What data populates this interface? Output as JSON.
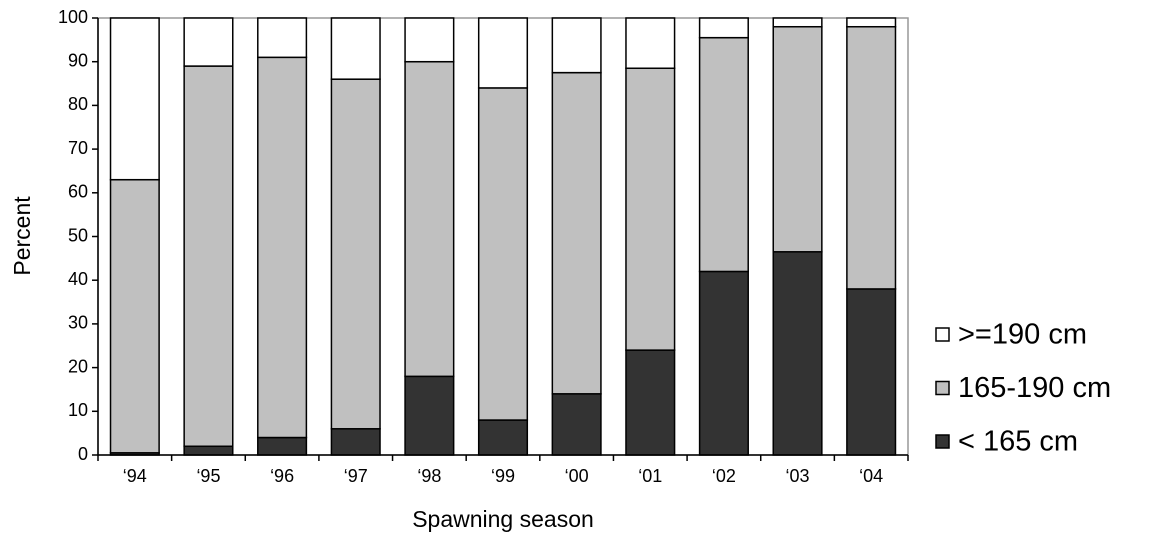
{
  "chart_data": {
    "type": "stacked_bar",
    "x_label": "Spawning season",
    "y_label": "Percent",
    "categories": [
      "‘94",
      "‘95",
      "‘96",
      "‘97",
      "‘98",
      "‘99",
      "‘00",
      "‘01",
      "‘02",
      "‘03",
      "‘04"
    ],
    "series": [
      {
        "name": "< 165 cm",
        "color": "#333333",
        "values": [
          0.5,
          2,
          4,
          6,
          18,
          8,
          14,
          24,
          42,
          46.5,
          38
        ]
      },
      {
        "name": "165-190 cm",
        "color": "#c0c0c0",
        "values": [
          62.5,
          87,
          87,
          80,
          72,
          76,
          73.5,
          64.5,
          53.5,
          51.5,
          60
        ]
      },
      {
        "name": ">=190 cm",
        "color": "#ffffff",
        "values": [
          37,
          11,
          9,
          14,
          10,
          16,
          12.5,
          11.5,
          4.5,
          2,
          2
        ]
      }
    ],
    "ylim": [
      0,
      100
    ],
    "yticks": [
      0,
      10,
      20,
      30,
      40,
      50,
      60,
      70,
      80,
      90,
      100
    ]
  }
}
